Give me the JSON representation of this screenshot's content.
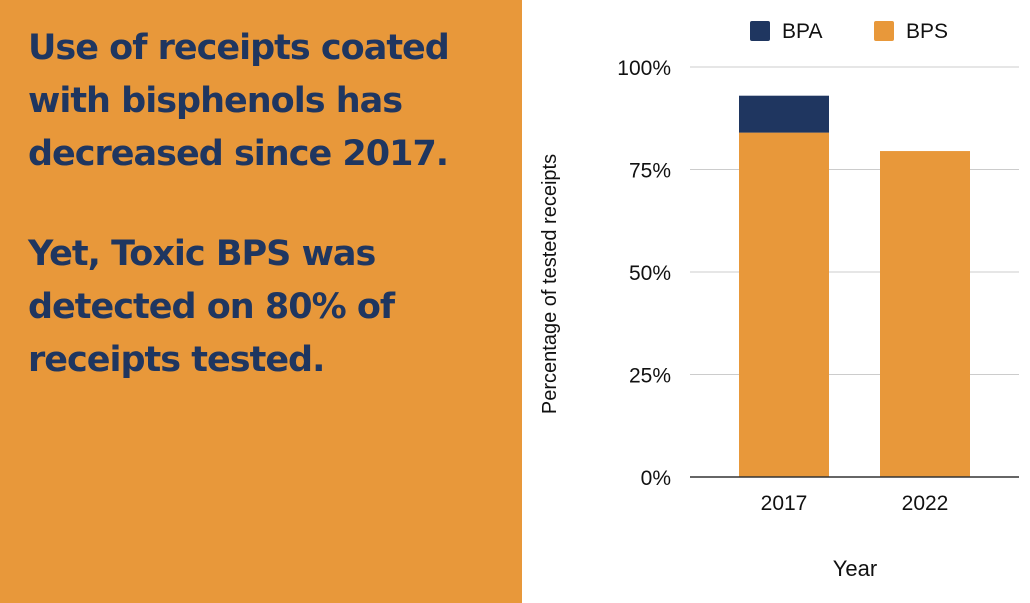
{
  "headline": {
    "line1": "Use of receipts coated with bisphenols has decreased since 2017.",
    "line2": "Yet, Toxic BPS was detected on 80% of receipts tested."
  },
  "colors": {
    "panel": "#E8983A",
    "headline_text": "#1F3660",
    "bpa": "#1F3660",
    "bps": "#E8983A"
  },
  "chart_data": {
    "type": "bar",
    "stacked": true,
    "categories": [
      "2017",
      "2022"
    ],
    "series": [
      {
        "name": "BPS",
        "values": [
          84,
          79.5
        ],
        "color": "#E8983A"
      },
      {
        "name": "BPA",
        "values": [
          9,
          0
        ],
        "color": "#1F3660"
      }
    ],
    "xlabel": "Year",
    "ylabel": "Percentage of tested receipts",
    "ylim": [
      0,
      100
    ],
    "yticks": [
      0,
      25,
      50,
      75,
      100
    ],
    "ytick_labels": [
      "0%",
      "25%",
      "50%",
      "75%",
      "100%"
    ],
    "legend": {
      "position": "top",
      "entries": [
        {
          "label": "BPA",
          "color": "#1F3660"
        },
        {
          "label": "BPS",
          "color": "#E8983A"
        }
      ]
    },
    "grid": true
  }
}
